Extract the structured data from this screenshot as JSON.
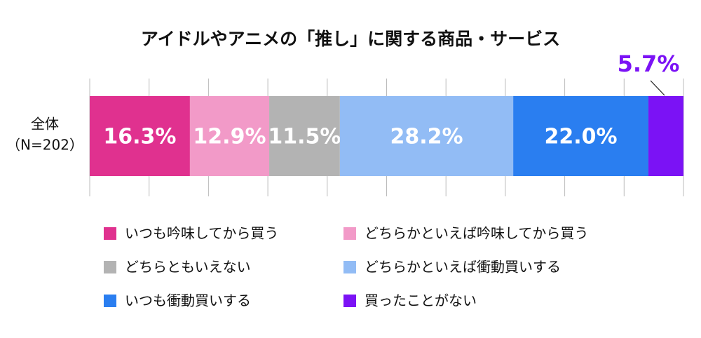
{
  "chart_data": {
    "type": "stacked_bar_horizontal",
    "title": "アイドルやアニメの「推し」に関する商品・サービス",
    "categories": [
      "全体"
    ],
    "sample_size": "（N=202）",
    "series": [
      {
        "name": "いつも吟味してから買う",
        "color": "#e0318f",
        "values": [
          16.3
        ],
        "value_labels": [
          "16.3%"
        ]
      },
      {
        "name": "どちらかといえば吟味してから買う",
        "color": "#f29ac8",
        "values": [
          12.9
        ],
        "value_labels": [
          "12.9%"
        ]
      },
      {
        "name": "どちらともいえない",
        "color": "#b3b3b3",
        "values": [
          11.5
        ],
        "value_labels": [
          "11.5%"
        ]
      },
      {
        "name": "どちらかといえば衝動買いする",
        "color": "#92bcf5",
        "values": [
          28.2
        ],
        "value_labels": [
          "28.2%"
        ]
      },
      {
        "name": "いつも衝動買いする",
        "color": "#2a7ef0",
        "values": [
          22.0
        ],
        "value_labels": [
          "22.0%"
        ]
      },
      {
        "name": "買ったことがない",
        "color": "#7b12f5",
        "values": [
          5.7
        ],
        "value_labels": [
          "5.7%"
        ]
      }
    ]
  }
}
